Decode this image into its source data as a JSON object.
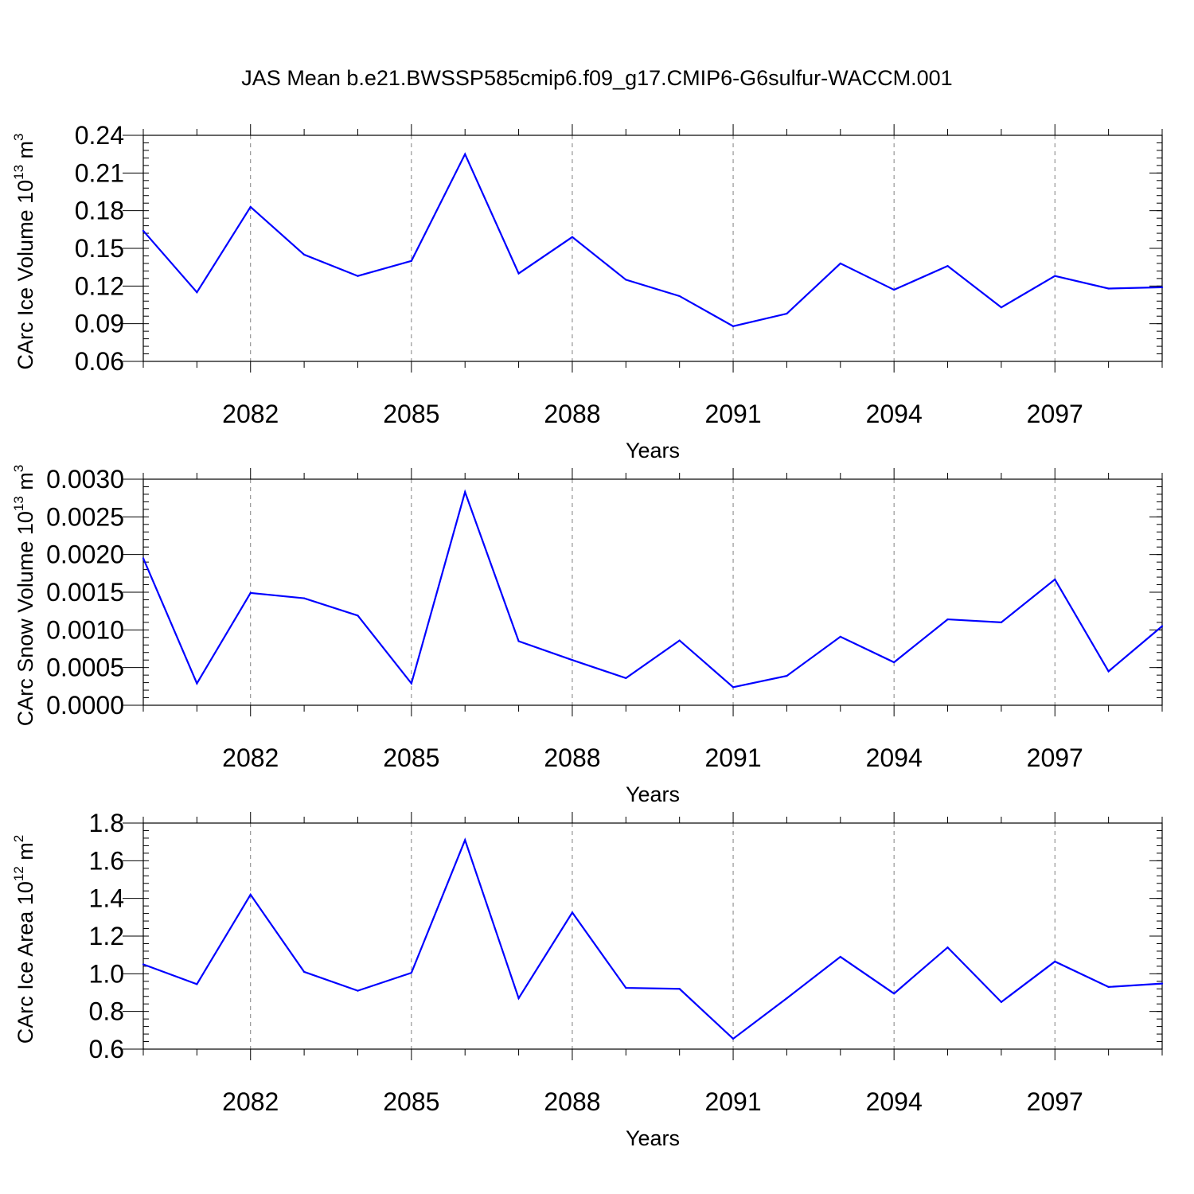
{
  "title": "JAS Mean b.e21.BWSSP585cmip6.f09_g17.CMIP6-G6sulfur-WACCM.001",
  "colors": {
    "line": "#0000ff",
    "axis": "#000000",
    "grid": "#808080"
  },
  "chart_data": [
    {
      "type": "line",
      "xlabel": "Years",
      "ylabel": {
        "base": "CArc Ice Volume 10",
        "exp": "13",
        "unit": " m",
        "unit_exp": "3"
      },
      "xlim": [
        2080,
        2099
      ],
      "ylim": [
        0.06,
        0.24
      ],
      "x_ticks": [
        2082,
        2085,
        2088,
        2091,
        2094,
        2097
      ],
      "x_tick_labels": [
        "2082",
        "2085",
        "2088",
        "2091",
        "2094",
        "2097"
      ],
      "y_ticks": [
        0.06,
        0.09,
        0.12,
        0.15,
        0.18,
        0.21,
        0.24
      ],
      "y_tick_labels": [
        "0.06",
        "0.09",
        "0.12",
        "0.15",
        "0.18",
        "0.21",
        "0.24"
      ],
      "y_minor_step": 0.006,
      "grid": "vertical dashed at major x ticks",
      "x": [
        2080,
        2081,
        2082,
        2083,
        2084,
        2085,
        2086,
        2087,
        2088,
        2089,
        2090,
        2091,
        2092,
        2093,
        2094,
        2095,
        2096,
        2097,
        2098,
        2099
      ],
      "series": [
        {
          "values": [
            0.164,
            0.115,
            0.183,
            0.145,
            0.128,
            0.14,
            0.225,
            0.13,
            0.159,
            0.125,
            0.112,
            0.088,
            0.098,
            0.138,
            0.117,
            0.136,
            0.103,
            0.128,
            0.118,
            0.119
          ]
        }
      ]
    },
    {
      "type": "line",
      "xlabel": "Years",
      "ylabel": {
        "base": "CArc Snow Volume 10",
        "exp": "13",
        "unit": " m",
        "unit_exp": "3"
      },
      "xlim": [
        2080,
        2099
      ],
      "ylim": [
        0.0,
        0.003
      ],
      "x_ticks": [
        2082,
        2085,
        2088,
        2091,
        2094,
        2097
      ],
      "x_tick_labels": [
        "2082",
        "2085",
        "2088",
        "2091",
        "2094",
        "2097"
      ],
      "y_ticks": [
        0.0,
        0.0005,
        0.001,
        0.0015,
        0.002,
        0.0025,
        0.003
      ],
      "y_tick_labels": [
        "0.0000",
        "0.0005",
        "0.0010",
        "0.0015",
        "0.0020",
        "0.0025",
        "0.0030"
      ],
      "y_minor_step": 0.0001,
      "grid": "vertical dashed at major x ticks",
      "x": [
        2080,
        2081,
        2082,
        2083,
        2084,
        2085,
        2086,
        2087,
        2088,
        2089,
        2090,
        2091,
        2092,
        2093,
        2094,
        2095,
        2096,
        2097,
        2098,
        2099
      ],
      "series": [
        {
          "values": [
            0.00195,
            0.00029,
            0.00149,
            0.00142,
            0.00119,
            0.00029,
            0.00283,
            0.00085,
            0.0006,
            0.00036,
            0.00086,
            0.00024,
            0.00039,
            0.00091,
            0.00057,
            0.00114,
            0.0011,
            0.00167,
            0.00045,
            0.00105
          ]
        }
      ]
    },
    {
      "type": "line",
      "xlabel": "Years",
      "ylabel": {
        "base": "CArc Ice Area 10",
        "exp": "12",
        "unit": " m",
        "unit_exp": "2"
      },
      "xlim": [
        2080,
        2099
      ],
      "ylim": [
        0.6,
        1.8
      ],
      "x_ticks": [
        2082,
        2085,
        2088,
        2091,
        2094,
        2097
      ],
      "x_tick_labels": [
        "2082",
        "2085",
        "2088",
        "2091",
        "2094",
        "2097"
      ],
      "y_ticks": [
        0.6,
        0.8,
        1.0,
        1.2,
        1.4,
        1.6,
        1.8
      ],
      "y_tick_labels": [
        "0.6",
        "0.8",
        "1.0",
        "1.2",
        "1.4",
        "1.6",
        "1.8"
      ],
      "y_minor_step": 0.04,
      "grid": "vertical dashed at major x ticks",
      "x": [
        2080,
        2081,
        2082,
        2083,
        2084,
        2085,
        2086,
        2087,
        2088,
        2089,
        2090,
        2091,
        2092,
        2093,
        2094,
        2095,
        2096,
        2097,
        2098,
        2099
      ],
      "series": [
        {
          "values": [
            1.05,
            0.945,
            1.42,
            1.01,
            0.91,
            1.005,
            1.71,
            0.87,
            1.325,
            0.925,
            0.92,
            0.655,
            0.87,
            1.09,
            0.895,
            1.14,
            0.85,
            1.065,
            0.93,
            0.948
          ]
        }
      ]
    }
  ]
}
